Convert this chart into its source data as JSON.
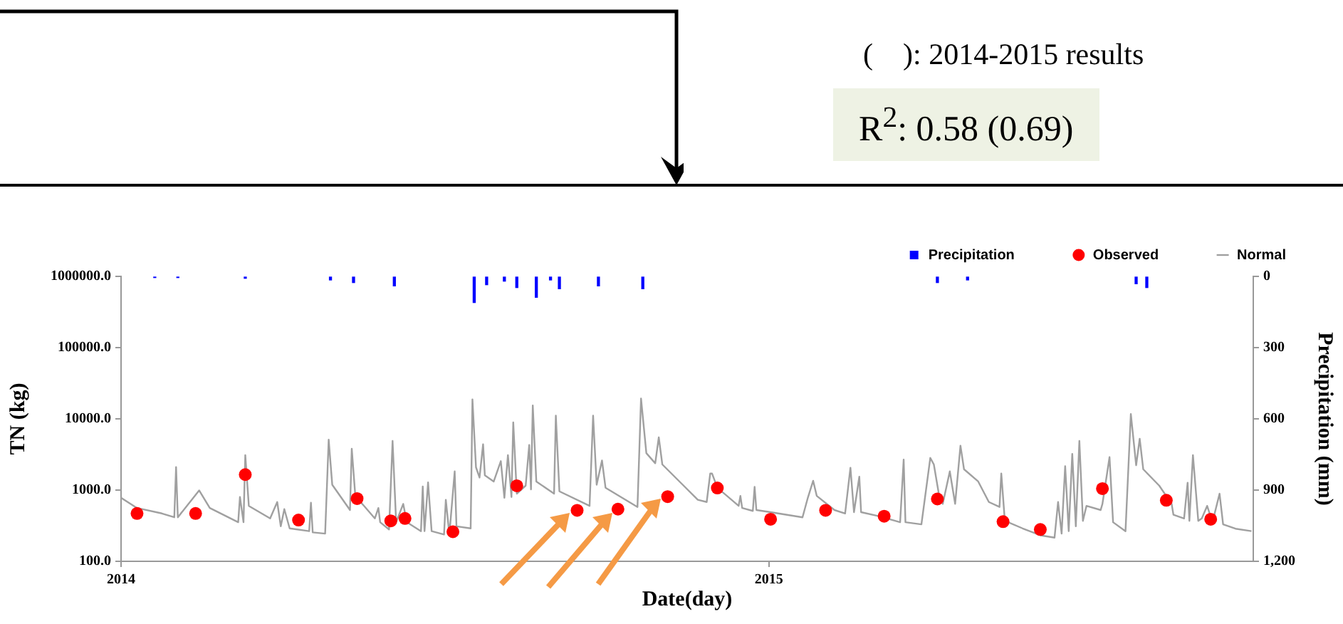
{
  "chart_data": {
    "type": "line",
    "xlabel": "Date(day)",
    "ylabel": "TN (kg)",
    "y2label": "Precipitation (mm)",
    "log": "y",
    "grid": false,
    "legend": "top right",
    "xlim": [
      "2014-01-01",
      "2015-10-01"
    ],
    "xticks": [
      {
        "value": "2014-01-01",
        "label": "2014"
      },
      {
        "value": "2015-01-01",
        "label": "2015"
      }
    ],
    "ylim": [
      100,
      1000000
    ],
    "yticks": [
      {
        "value": 100,
        "label": "100.0"
      },
      {
        "value": 1000,
        "label": "1000.0"
      },
      {
        "value": 10000,
        "label": "10000.0"
      },
      {
        "value": 100000,
        "label": "100000.0"
      },
      {
        "value": 1000000,
        "label": "1000000.0"
      }
    ],
    "y2lim": [
      1200,
      0
    ],
    "y2ticks": [
      0,
      300,
      600,
      900,
      {
        "value": 1200,
        "label": "1,200"
      }
    ],
    "series": [
      {
        "name": "Precipitation",
        "type": "bar",
        "axis": "y2",
        "color": "#0000ff",
        "x": [
          "2014-01-20",
          "2014-02-02",
          "2014-03-12",
          "2014-04-29",
          "2014-05-12",
          "2014-06-04",
          "2014-07-19",
          "2014-07-26",
          "2014-08-05",
          "2014-08-12",
          "2014-08-23",
          "2014-08-31",
          "2014-09-05",
          "2014-09-27",
          "2014-10-22",
          "2015-04-06",
          "2015-04-23",
          "2015-07-27",
          "2015-08-02"
        ],
        "values": [
          5,
          5,
          8,
          15,
          26,
          40,
          110,
          35,
          20,
          47,
          88,
          15,
          52,
          40,
          52,
          26,
          15,
          31,
          47
        ]
      },
      {
        "name": "Observed",
        "type": "scatter",
        "marker": "circle",
        "color": "#ff0000",
        "x": [
          "2014-01-10",
          "2014-02-12",
          "2014-03-12",
          "2014-04-11",
          "2014-05-14",
          "2014-06-02",
          "2014-06-10",
          "2014-07-07",
          "2014-08-12",
          "2014-09-15",
          "2014-10-08",
          "2014-11-05",
          "2014-12-03",
          "2015-01-02",
          "2015-02-02",
          "2015-03-07",
          "2015-04-06",
          "2015-05-13",
          "2015-06-03",
          "2015-07-08",
          "2015-08-13",
          "2015-09-07"
        ],
        "values": [
          470,
          470,
          1650,
          380,
          760,
          370,
          400,
          260,
          1150,
          520,
          540,
          810,
          1070,
          390,
          520,
          430,
          750,
          360,
          280,
          1050,
          720,
          390
        ]
      },
      {
        "name": "Normal",
        "marker": "none",
        "color": "#a0a0a0",
        "x": [
          "2014-01-01",
          "2014-01-10",
          "2014-01-24",
          "2014-01-31",
          "2014-02-01",
          "2014-02-02",
          "2014-02-14",
          "2014-02-20",
          "2014-03-08",
          "2014-03-09",
          "2014-03-11",
          "2014-03-12",
          "2014-03-14",
          "2014-03-26",
          "2014-03-30",
          "2014-04-01",
          "2014-04-03",
          "2014-04-06",
          "2014-04-17",
          "2014-04-18",
          "2014-04-19",
          "2014-04-26",
          "2014-04-28",
          "2014-04-30",
          "2014-05-10",
          "2014-05-11",
          "2014-05-13",
          "2014-05-24",
          "2014-05-26",
          "2014-05-27",
          "2014-06-01",
          "2014-06-03",
          "2014-06-05",
          "2014-06-09",
          "2014-06-11",
          "2014-06-19",
          "2014-06-20",
          "2014-06-21",
          "2014-06-23",
          "2014-06-25",
          "2014-07-02",
          "2014-07-03",
          "2014-07-05",
          "2014-07-08",
          "2014-07-09",
          "2014-07-17",
          "2014-07-18",
          "2014-07-20",
          "2014-07-22",
          "2014-07-24",
          "2014-07-25",
          "2014-07-30",
          "2014-08-03",
          "2014-08-05",
          "2014-08-07",
          "2014-08-09",
          "2014-08-10",
          "2014-08-12",
          "2014-08-17",
          "2014-08-19",
          "2014-08-20",
          "2014-08-21",
          "2014-08-23",
          "2014-09-02",
          "2014-09-03",
          "2014-09-05",
          "2014-09-22",
          "2014-09-24",
          "2014-09-26",
          "2014-09-29",
          "2014-10-01",
          "2014-10-19",
          "2014-10-21",
          "2014-10-24",
          "2014-10-29",
          "2014-10-31",
          "2014-11-02",
          "2014-11-14",
          "2014-11-22",
          "2014-11-27",
          "2014-11-29",
          "2014-11-30",
          "2014-12-03",
          "2014-12-15",
          "2014-12-16",
          "2014-12-17",
          "2014-12-23",
          "2014-12-24",
          "2014-12-25",
          "2015-01-02",
          "2015-01-20",
          "2015-01-23",
          "2015-01-26",
          "2015-01-28",
          "2015-02-07",
          "2015-02-13",
          "2015-02-16",
          "2015-02-18",
          "2015-02-21",
          "2015-02-22",
          "2015-03-04",
          "2015-03-16",
          "2015-03-18",
          "2015-03-19",
          "2015-03-28",
          "2015-04-02",
          "2015-04-04",
          "2015-04-07",
          "2015-04-09",
          "2015-04-13",
          "2015-04-16",
          "2015-04-19",
          "2015-04-21",
          "2015-04-29",
          "2015-05-05",
          "2015-05-11",
          "2015-05-12",
          "2015-05-14",
          "2015-05-24",
          "2015-06-03",
          "2015-06-11",
          "2015-06-13",
          "2015-06-15",
          "2015-06-17",
          "2015-06-19",
          "2015-06-21",
          "2015-06-23",
          "2015-06-25",
          "2015-06-27",
          "2015-06-29",
          "2015-07-07",
          "2015-07-08",
          "2015-07-12",
          "2015-07-14",
          "2015-07-21",
          "2015-07-24",
          "2015-07-27",
          "2015-07-29",
          "2015-07-31",
          "2015-08-09",
          "2015-08-16",
          "2015-08-17",
          "2015-08-23",
          "2015-08-25",
          "2015-08-26",
          "2015-08-28",
          "2015-08-31",
          "2015-09-02",
          "2015-09-05",
          "2015-09-08",
          "2015-09-12",
          "2015-09-14",
          "2015-09-21",
          "2015-09-30"
        ],
        "values": [
          780,
          560,
          470,
          415,
          2100,
          415,
          990,
          560,
          354,
          800,
          354,
          3100,
          600,
          400,
          680,
          310,
          540,
          290,
          265,
          665,
          255,
          245,
          5100,
          1190,
          525,
          3800,
          830,
          400,
          560,
          354,
          280,
          4900,
          354,
          640,
          354,
          265,
          1125,
          265,
          1280,
          265,
          238,
          730,
          238,
          1830,
          310,
          290,
          18800,
          2090,
          1500,
          4400,
          1610,
          1320,
          2550,
          780,
          3100,
          800,
          8900,
          890,
          1155,
          4300,
          1020,
          15400,
          1320,
          890,
          11100,
          960,
          600,
          11100,
          1190,
          2600,
          1080,
          580,
          19300,
          3300,
          2380,
          5500,
          2290,
          1155,
          730,
          680,
          1710,
          1710,
          1080,
          600,
          830,
          560,
          510,
          1110,
          525,
          490,
          415,
          780,
          1350,
          830,
          525,
          470,
          2060,
          490,
          1540,
          490,
          430,
          354,
          2680,
          354,
          330,
          2830,
          2290,
          830,
          640,
          1830,
          640,
          4200,
          1960,
          1320,
          680,
          580,
          1710,
          370,
          290,
          232,
          215,
          680,
          245,
          2170,
          265,
          3230,
          310,
          4900,
          370,
          600,
          525,
          640,
          2900,
          354,
          265,
          11700,
          2230,
          5250,
          1960,
          1155,
          640,
          450,
          400,
          1270,
          370,
          3100,
          370,
          400,
          600,
          354,
          890,
          330,
          287,
          265
        ]
      }
    ],
    "annotations": [
      "(    ): 2014-2015 results",
      "R$^{2}$: 0.58 (0.69)"
    ]
  }
}
